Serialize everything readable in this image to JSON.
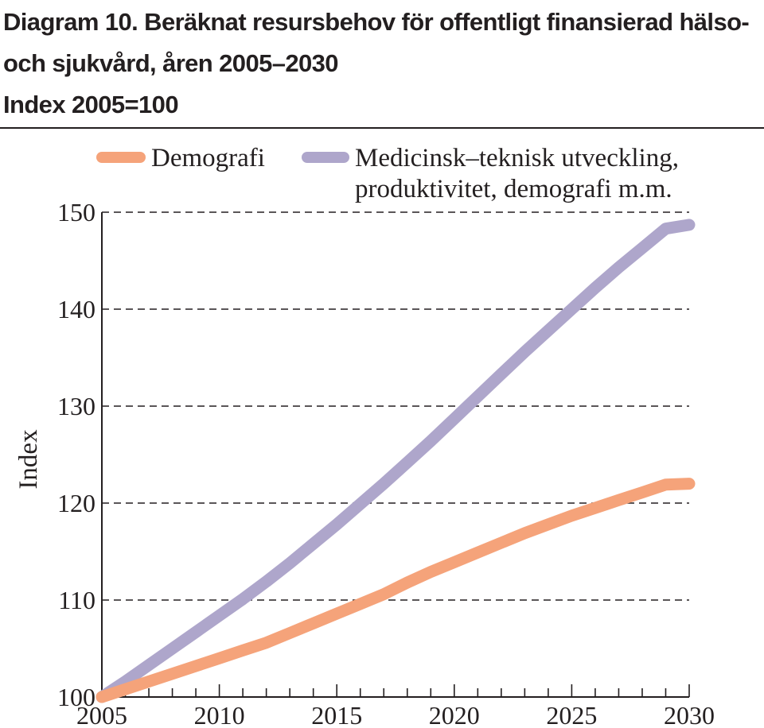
{
  "title_lines": [
    "Diagram 10. Beräknat resursbehov för offentligt finansierad hälso-",
    "och sjukvård, åren 2005–2030",
    "Index 2005=100"
  ],
  "chart_data": {
    "type": "line",
    "title": "Diagram 10. Beräknat resursbehov för offentligt finansierad hälso- och sjukvård, åren 2005–2030",
    "subtitle": "Index 2005=100",
    "xlabel": "",
    "ylabel": "Index",
    "xlim": [
      2005,
      2030
    ],
    "ylim": [
      100,
      150
    ],
    "x_ticks": [
      2005,
      2010,
      2015,
      2020,
      2025,
      2030
    ],
    "y_ticks": [
      100,
      110,
      120,
      130,
      140,
      150
    ],
    "grid": "horizontal dashed",
    "legend_position": "top",
    "x": [
      2005,
      2006,
      2007,
      2008,
      2009,
      2010,
      2011,
      2012,
      2013,
      2014,
      2015,
      2016,
      2017,
      2018,
      2019,
      2020,
      2021,
      2022,
      2023,
      2024,
      2025,
      2026,
      2027,
      2028,
      2029,
      2030
    ],
    "series": [
      {
        "name": "Demografi",
        "color": "#f5a37a",
        "values": [
          100,
          100.8,
          101.6,
          102.4,
          103.2,
          104.0,
          104.8,
          105.6,
          106.6,
          107.6,
          108.6,
          109.6,
          110.6,
          111.8,
          112.9,
          113.9,
          114.9,
          115.9,
          116.9,
          117.8,
          118.7,
          119.5,
          120.3,
          121.1,
          121.9,
          122.0
        ]
      },
      {
        "name": "Medicinsk–teknisk utveckling, produktivitet, demografi m.m.",
        "legend_lines": [
          "Medicinsk–teknisk utveckling,",
          "produktivitet, demografi m.m."
        ],
        "color": "#aea6cb",
        "values": [
          100,
          101.6,
          103.3,
          105.0,
          106.7,
          108.4,
          110.1,
          111.9,
          113.8,
          115.8,
          117.8,
          119.9,
          122.0,
          124.2,
          126.4,
          128.7,
          131.0,
          133.3,
          135.6,
          137.8,
          140.0,
          142.2,
          144.3,
          146.3,
          148.3,
          148.7
        ]
      }
    ]
  }
}
